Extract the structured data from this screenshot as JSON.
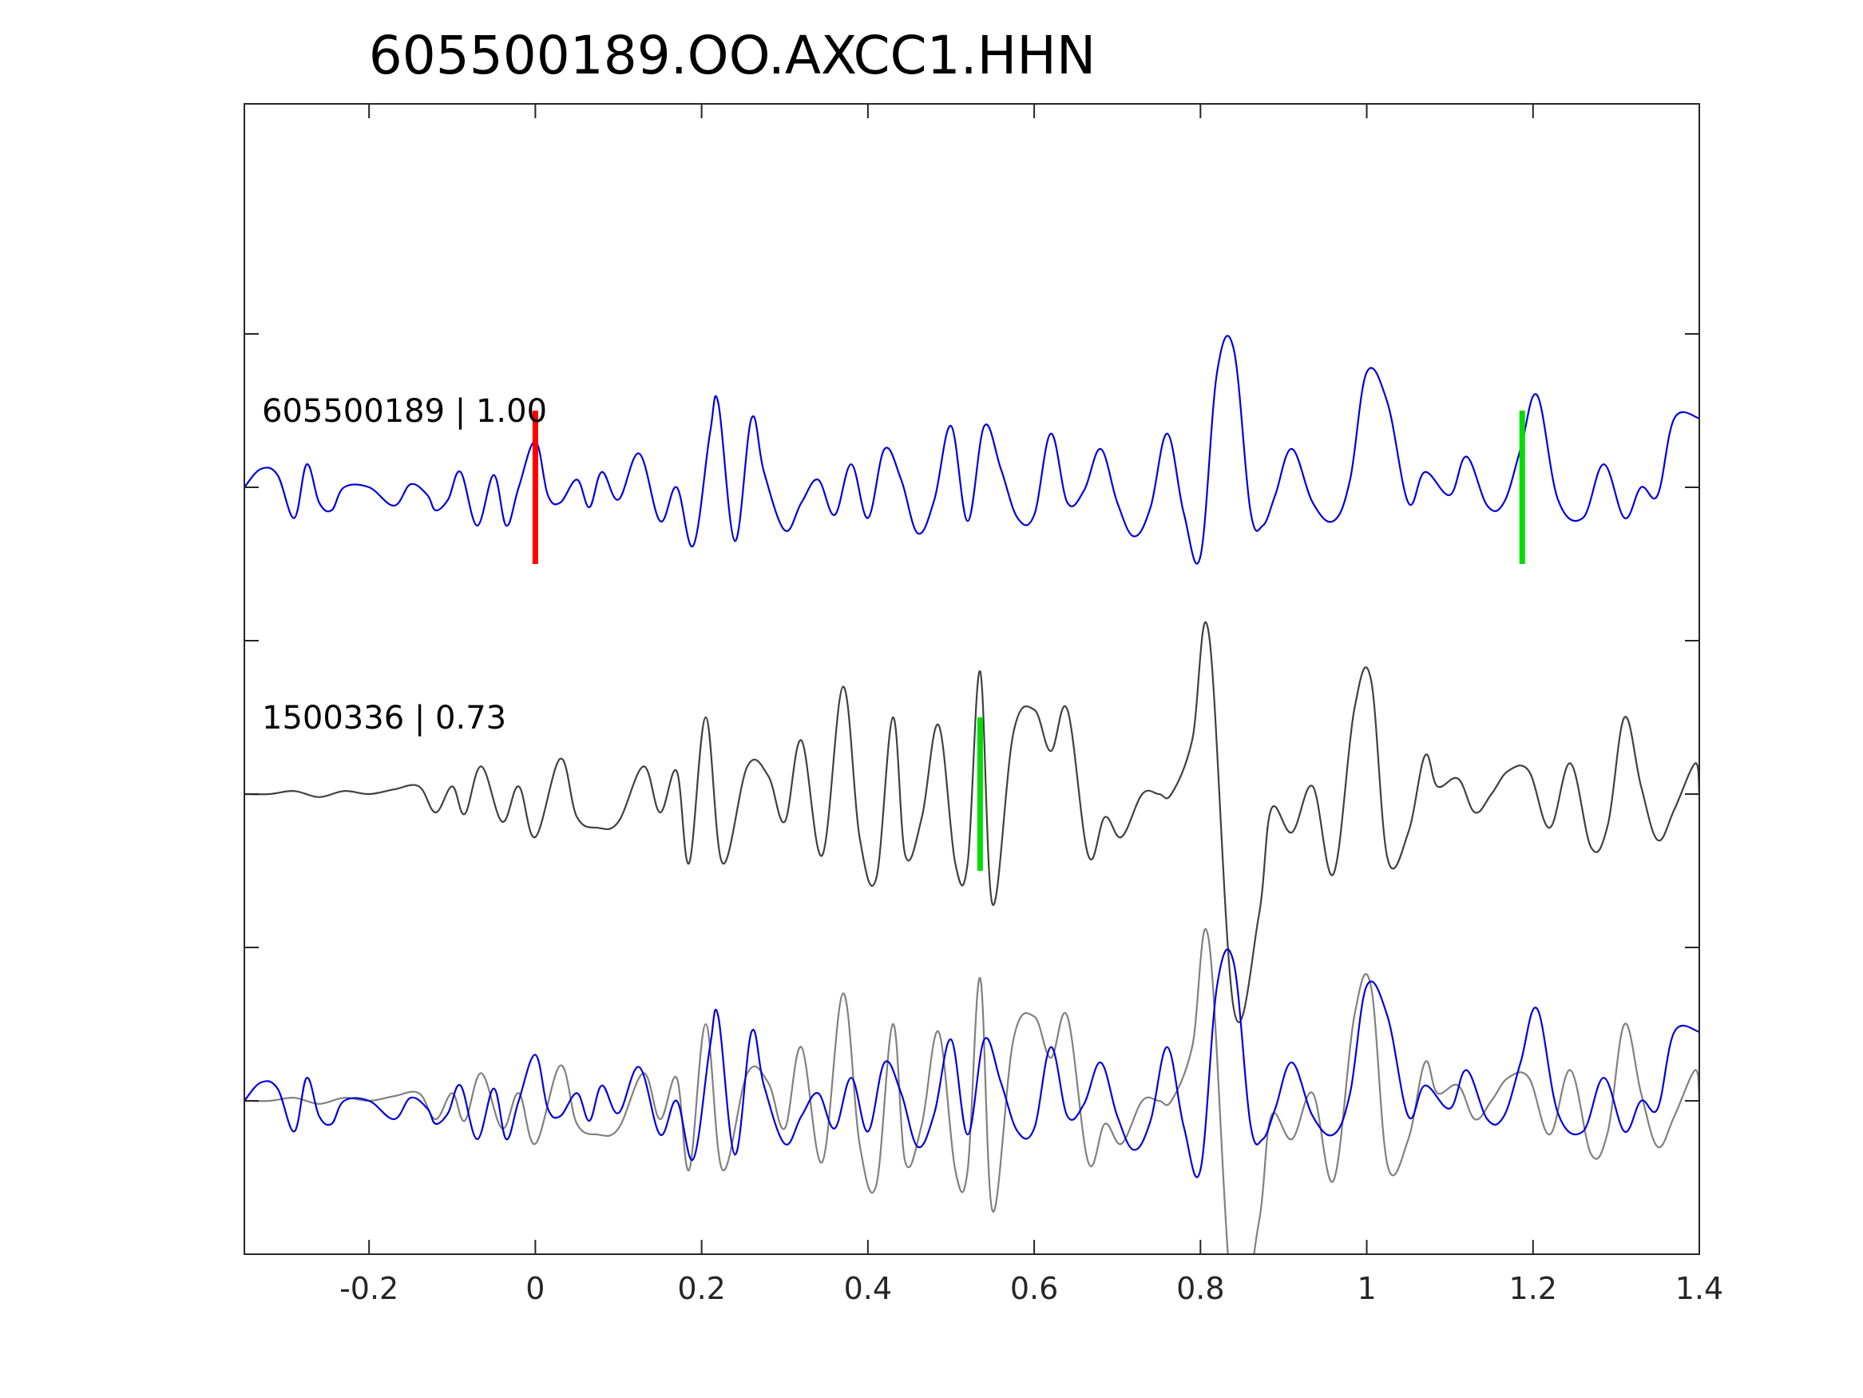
{
  "chart_data": {
    "type": "line",
    "title": "605500189.OO.AXCC1.HHN",
    "xlabel": "",
    "ylabel": "",
    "xlim": [
      -0.35,
      1.4
    ],
    "xticks": [
      -0.2,
      0,
      0.2,
      0.4,
      0.6,
      0.8,
      1,
      1.2,
      1.4
    ],
    "xtick_labels": [
      "-0.2",
      "0",
      "0.2",
      "0.4",
      "0.6",
      "0.8",
      "1",
      "1.2",
      "1.4"
    ],
    "ylim": [
      0,
      7.5
    ],
    "yticks": [
      1,
      2,
      3,
      4,
      5,
      6
    ],
    "ytick_labels_visible": false,
    "grid": false,
    "colors": {
      "template": "#0000dd",
      "detection": "#404040",
      "overlay_detection": "#808080",
      "pick_p": "#ff0000",
      "pick_s": "#00dd00"
    },
    "traces": [
      {
        "label": "605500189 | 1.00",
        "baseline": 5,
        "color": "template",
        "x": [
          -0.35,
          -0.33,
          -0.31,
          -0.29,
          -0.275,
          -0.26,
          -0.245,
          -0.23,
          -0.2,
          -0.17,
          -0.15,
          -0.13,
          -0.12,
          -0.105,
          -0.09,
          -0.07,
          -0.05,
          -0.035,
          -0.02,
          0.0,
          0.015,
          0.03,
          0.05,
          0.065,
          0.08,
          0.1,
          0.125,
          0.15,
          0.17,
          0.19,
          0.21,
          0.22,
          0.24,
          0.26,
          0.275,
          0.3,
          0.32,
          0.34,
          0.36,
          0.38,
          0.4,
          0.42,
          0.44,
          0.46,
          0.48,
          0.5,
          0.52,
          0.54,
          0.56,
          0.58,
          0.6,
          0.62,
          0.64,
          0.66,
          0.68,
          0.7,
          0.72,
          0.74,
          0.76,
          0.78,
          0.8,
          0.82,
          0.84,
          0.86,
          0.875,
          0.89,
          0.91,
          0.935,
          0.96,
          0.98,
          1.0,
          1.025,
          1.05,
          1.07,
          1.1,
          1.12,
          1.145,
          1.165,
          1.185,
          1.205,
          1.23,
          1.26,
          1.285,
          1.31,
          1.33,
          1.35,
          1.37,
          1.4
        ],
        "y": [
          5.0,
          5.12,
          5.08,
          4.8,
          5.15,
          4.9,
          4.85,
          5.0,
          5.0,
          4.88,
          5.02,
          4.95,
          4.85,
          4.92,
          5.1,
          4.75,
          5.08,
          4.75,
          5.0,
          5.3,
          4.95,
          4.9,
          5.05,
          4.87,
          5.1,
          4.92,
          5.22,
          4.78,
          5.0,
          4.62,
          5.35,
          5.55,
          4.65,
          5.45,
          5.1,
          4.72,
          4.9,
          5.05,
          4.82,
          5.15,
          4.8,
          5.25,
          5.05,
          4.7,
          4.92,
          5.4,
          4.78,
          5.4,
          5.12,
          4.8,
          4.82,
          5.35,
          4.9,
          4.98,
          5.25,
          4.9,
          4.68,
          4.87,
          5.35,
          4.83,
          4.55,
          5.75,
          5.9,
          4.85,
          4.75,
          4.95,
          5.25,
          4.9,
          4.78,
          5.05,
          5.75,
          5.55,
          4.9,
          5.1,
          4.95,
          5.2,
          4.88,
          4.9,
          5.25,
          5.6,
          4.92,
          4.8,
          5.15,
          4.8,
          5.0,
          4.95,
          5.45,
          5.45
        ]
      },
      {
        "label": "1500336 | 0.73",
        "baseline": 3,
        "color": "detection",
        "x": [
          -0.35,
          -0.32,
          -0.29,
          -0.26,
          -0.23,
          -0.2,
          -0.17,
          -0.14,
          -0.12,
          -0.1,
          -0.085,
          -0.065,
          -0.04,
          -0.02,
          0.0,
          0.03,
          0.05,
          0.075,
          0.1,
          0.13,
          0.15,
          0.17,
          0.185,
          0.205,
          0.225,
          0.255,
          0.28,
          0.3,
          0.32,
          0.345,
          0.37,
          0.39,
          0.41,
          0.43,
          0.445,
          0.465,
          0.485,
          0.505,
          0.52,
          0.535,
          0.55,
          0.575,
          0.6,
          0.62,
          0.64,
          0.665,
          0.685,
          0.705,
          0.73,
          0.75,
          0.765,
          0.79,
          0.81,
          0.84,
          0.87,
          0.885,
          0.91,
          0.935,
          0.96,
          0.985,
          1.005,
          1.025,
          1.05,
          1.07,
          1.085,
          1.11,
          1.13,
          1.15,
          1.17,
          1.195,
          1.22,
          1.245,
          1.27,
          1.29,
          1.31,
          1.33,
          1.35,
          1.37,
          1.395,
          1.4
        ],
        "y": [
          3.0,
          3.0,
          3.02,
          2.98,
          3.02,
          3.0,
          3.03,
          3.05,
          2.88,
          3.05,
          2.87,
          3.18,
          2.82,
          3.05,
          2.72,
          3.23,
          2.85,
          2.78,
          2.82,
          3.18,
          2.88,
          3.15,
          2.55,
          3.5,
          2.55,
          3.18,
          3.12,
          2.82,
          3.35,
          2.6,
          3.7,
          2.72,
          2.45,
          3.5,
          2.6,
          2.85,
          3.45,
          2.55,
          2.55,
          3.8,
          2.28,
          3.4,
          3.55,
          3.28,
          3.55,
          2.6,
          2.85,
          2.72,
          3.0,
          3.0,
          3.0,
          3.35,
          4.05,
          1.6,
          2.2,
          2.9,
          2.75,
          3.05,
          2.48,
          3.55,
          3.75,
          2.58,
          2.75,
          3.25,
          3.05,
          3.1,
          2.88,
          3.0,
          3.15,
          3.15,
          2.78,
          3.2,
          2.65,
          2.8,
          3.5,
          3.05,
          2.7,
          2.9,
          3.2,
          3.0
        ]
      }
    ],
    "overlay": {
      "baseline": 1,
      "description_series": [
        "template",
        "detection"
      ]
    },
    "picks": [
      {
        "trace": 0,
        "x": 0.0,
        "color": "pick_p"
      },
      {
        "trace": 0,
        "x": 1.187,
        "color": "pick_s"
      },
      {
        "trace": 1,
        "x": 0.535,
        "color": "pick_s"
      }
    ]
  }
}
